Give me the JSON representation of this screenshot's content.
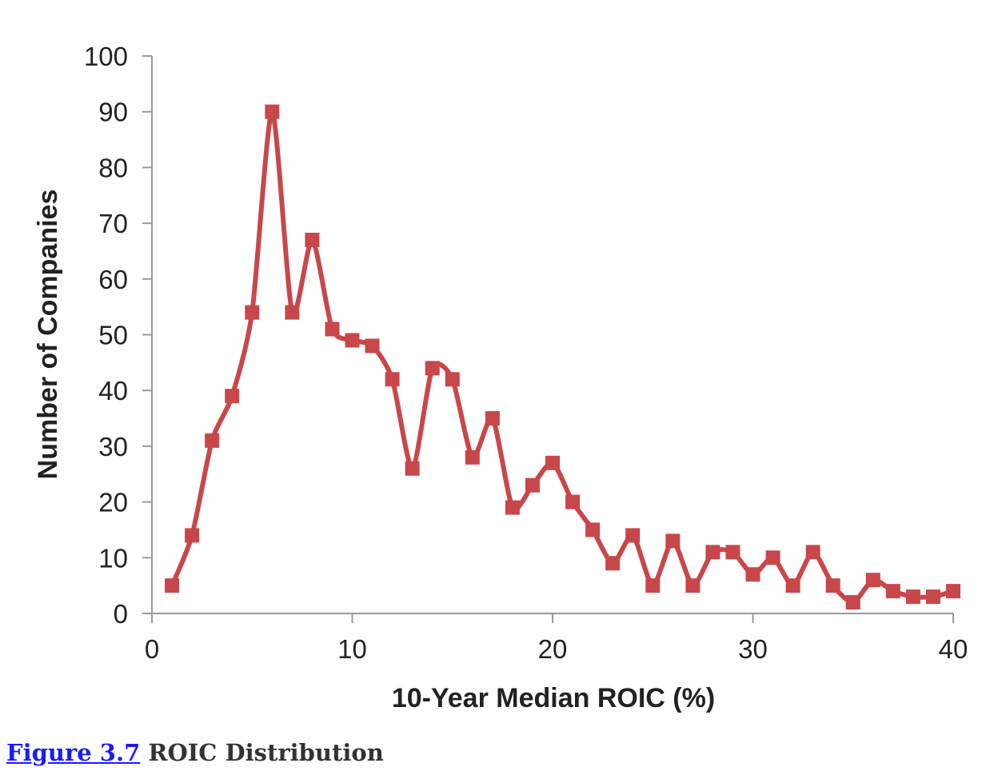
{
  "chart_data": {
    "type": "line",
    "title": "",
    "xlabel": "10-Year Median ROIC (%)",
    "ylabel": "Number of Companies",
    "xlim": [
      0,
      40
    ],
    "ylim": [
      0,
      100
    ],
    "xticks": [
      0,
      10,
      20,
      30,
      40
    ],
    "yticks": [
      0,
      10,
      20,
      30,
      40,
      50,
      60,
      70,
      80,
      90,
      100
    ],
    "grid": false,
    "series": [
      {
        "name": "Companies",
        "color": "#c8474b",
        "marker": "square",
        "x": [
          1,
          2,
          3,
          4,
          5,
          6,
          7,
          8,
          9,
          10,
          11,
          12,
          13,
          14,
          15,
          16,
          17,
          18,
          19,
          20,
          21,
          22,
          23,
          24,
          25,
          26,
          27,
          28,
          29,
          30,
          31,
          32,
          33,
          34,
          35,
          36,
          37,
          38,
          39,
          40
        ],
        "y": [
          5,
          14,
          31,
          39,
          54,
          90,
          54,
          67,
          51,
          49,
          48,
          42,
          26,
          44,
          42,
          28,
          35,
          19,
          23,
          27,
          20,
          15,
          9,
          14,
          5,
          13,
          5,
          11,
          11,
          7,
          10,
          5,
          11,
          5,
          2,
          6,
          4,
          3,
          3,
          4
        ]
      }
    ]
  },
  "caption": {
    "link": "Figure 3.7",
    "text": "ROIC Distribution"
  }
}
